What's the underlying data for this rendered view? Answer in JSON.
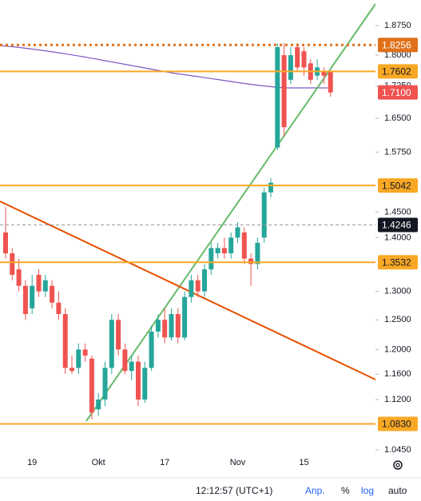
{
  "chart_data": {
    "type": "candlestick",
    "log_scale": true,
    "grid": false,
    "up_color": "#26a69a",
    "down_color": "#ef5350",
    "categories": [
      null,
      null,
      null,
      null,
      "19",
      null,
      null,
      null,
      null,
      null,
      null,
      null,
      null,
      null,
      "Okt",
      null,
      null,
      null,
      null,
      null,
      null,
      null,
      null,
      null,
      "17",
      null,
      null,
      null,
      null,
      null,
      null,
      null,
      null,
      null,
      null,
      "Nov",
      null,
      null,
      null,
      null,
      null,
      null,
      null,
      null,
      null,
      "15",
      null,
      null,
      null,
      null
    ],
    "open": [
      1.41,
      1.37,
      1.34,
      1.31,
      1.27,
      1.33,
      1.3,
      1.31,
      1.28,
      1.26,
      1.17,
      1.17,
      1.2,
      1.185,
      1.105,
      1.12,
      1.17,
      1.25,
      1.2,
      1.165,
      1.18,
      1.12,
      1.17,
      1.23,
      1.25,
      1.22,
      1.26,
      1.22,
      1.29,
      1.32,
      1.3,
      1.34,
      1.37,
      1.38,
      1.37,
      1.4,
      1.41,
      1.36,
      1.35,
      1.4,
      1.49,
      1.585,
      1.8,
      1.74,
      1.82,
      1.81,
      1.78,
      1.75,
      1.76,
      1.76
    ],
    "high": [
      1.46,
      1.38,
      1.36,
      1.32,
      1.33,
      1.34,
      1.33,
      1.32,
      1.3,
      1.27,
      1.19,
      1.21,
      1.21,
      1.19,
      1.13,
      1.18,
      1.26,
      1.26,
      1.21,
      1.19,
      1.19,
      1.18,
      1.24,
      1.26,
      1.27,
      1.27,
      1.27,
      1.3,
      1.33,
      1.33,
      1.35,
      1.39,
      1.39,
      1.4,
      1.41,
      1.43,
      1.42,
      1.37,
      1.4,
      1.5,
      1.52,
      1.83,
      1.83,
      1.82,
      1.83,
      1.82,
      1.79,
      1.79,
      1.77,
      1.76
    ],
    "low": [
      1.36,
      1.32,
      1.3,
      1.25,
      1.26,
      1.29,
      1.29,
      1.27,
      1.25,
      1.16,
      1.16,
      1.16,
      1.18,
      1.09,
      1.095,
      1.11,
      1.16,
      1.19,
      1.16,
      1.15,
      1.11,
      1.115,
      1.165,
      1.22,
      1.21,
      1.215,
      1.21,
      1.215,
      1.28,
      1.29,
      1.29,
      1.33,
      1.36,
      1.36,
      1.36,
      1.39,
      1.35,
      1.31,
      1.34,
      1.39,
      1.48,
      1.58,
      1.61,
      1.73,
      1.76,
      1.75,
      1.73,
      1.74,
      1.73,
      1.7
    ],
    "close": [
      1.37,
      1.33,
      1.31,
      1.26,
      1.31,
      1.3,
      1.32,
      1.28,
      1.26,
      1.17,
      1.165,
      1.2,
      1.19,
      1.1,
      1.12,
      1.17,
      1.25,
      1.2,
      1.165,
      1.18,
      1.12,
      1.17,
      1.23,
      1.25,
      1.22,
      1.26,
      1.22,
      1.29,
      1.32,
      1.3,
      1.34,
      1.38,
      1.38,
      1.37,
      1.4,
      1.42,
      1.36,
      1.35,
      1.39,
      1.49,
      1.51,
      1.82,
      1.63,
      1.8,
      1.77,
      1.77,
      1.74,
      1.77,
      1.75,
      1.71
    ],
    "ylim": [
      1.045,
      1.875
    ],
    "yticks": [
      {
        "value": 1.875,
        "label": "1.8750"
      },
      {
        "value": 1.8,
        "label": "1.8000"
      },
      {
        "value": 1.725,
        "label": "1.7250"
      },
      {
        "value": 1.65,
        "label": "1.6500"
      },
      {
        "value": 1.575,
        "label": "1.5750"
      },
      {
        "value": 1.45,
        "label": "1.4500"
      },
      {
        "value": 1.4,
        "label": "1.4000"
      },
      {
        "value": 1.3,
        "label": "1.3000"
      },
      {
        "value": 1.25,
        "label": "1.2500"
      },
      {
        "value": 1.2,
        "label": "1.2000"
      },
      {
        "value": 1.16,
        "label": "1.1600"
      },
      {
        "value": 1.12,
        "label": "1.1200"
      },
      {
        "value": 1.045,
        "label": "1.0450"
      }
    ],
    "price_lines": [
      {
        "value": 1.8256,
        "style": "dotted",
        "color": "#e0711a",
        "text_color": "#ffffff"
      },
      {
        "value": 1.7602,
        "style": "solid",
        "color": "#f9a825",
        "text_color": "#131722"
      },
      {
        "value": 1.71,
        "label": "1.7100",
        "style": "none",
        "color": "#ef5350",
        "text_color": "#ffffff"
      },
      {
        "value": 1.5042,
        "style": "solid",
        "color": "#f9a825",
        "text_color": "#131722"
      },
      {
        "value": 1.4246,
        "style": "dashed",
        "color": "#131722",
        "text_color": "#ffffff"
      },
      {
        "value": 1.3532,
        "style": "solid",
        "color": "#f9a825",
        "text_color": "#131722"
      },
      {
        "value": 1.083,
        "label": "1.0830",
        "style": "solid",
        "color": "#f9a825",
        "text_color": "#131722"
      }
    ]
  },
  "status_bar": {
    "time": "12:12:57 (UTC+1)",
    "buttons": [
      "Anp.",
      "%",
      "log",
      "auto"
    ]
  }
}
